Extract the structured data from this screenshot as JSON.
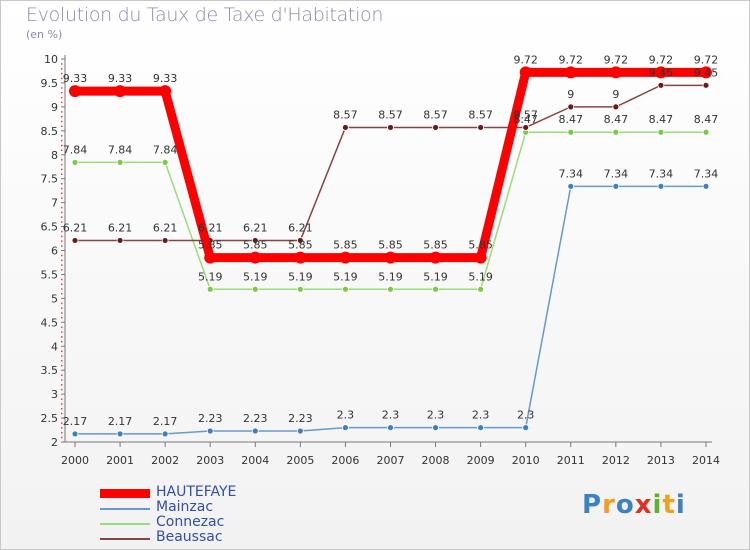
{
  "chart_data": {
    "type": "line",
    "title": "Evolution du Taux de Taxe d'Habitation",
    "unit_label": "(en %)",
    "x": [
      "2000",
      "2001",
      "2002",
      "2003",
      "2004",
      "2005",
      "2006",
      "2007",
      "2008",
      "2009",
      "2010",
      "2011",
      "2012",
      "2013",
      "2014"
    ],
    "ylim": [
      2,
      10
    ],
    "yticks": [
      "2",
      "2.5",
      "3",
      "3.5",
      "4",
      "4.5",
      "5",
      "5.5",
      "6",
      "6.5",
      "7",
      "7.5",
      "8",
      "8.5",
      "9",
      "9.5",
      "10"
    ],
    "grid": false,
    "legend_position": "bottom-left",
    "series": [
      {
        "name": "HAUTEFAYE",
        "color": "#ff0000",
        "emphasis": true,
        "values": [
          9.33,
          9.33,
          9.33,
          5.85,
          5.85,
          5.85,
          5.85,
          5.85,
          5.85,
          5.85,
          9.72,
          9.72,
          9.72,
          9.72,
          9.72
        ],
        "labels": [
          "9.33",
          "9.33",
          "9.33",
          "5.85",
          "5.85",
          "5.85",
          "5.85",
          "5.85",
          "5.85",
          "5.85",
          "9.72",
          "9.72",
          "9.72",
          "9.72",
          "9.72"
        ]
      },
      {
        "name": "Mainzac",
        "color": "#6699cc",
        "marker_color": "#3d7fc0",
        "values": [
          2.17,
          2.17,
          2.17,
          2.23,
          2.23,
          2.23,
          2.3,
          2.3,
          2.3,
          2.3,
          2.3,
          7.34,
          7.34,
          7.34,
          7.34
        ],
        "labels": [
          "2.17",
          "2.17",
          "2.17",
          "2.23",
          "2.23",
          "2.23",
          "2.3",
          "2.3",
          "2.3",
          "2.3",
          "2.3",
          "7.34",
          "7.34",
          "7.34",
          "7.34"
        ]
      },
      {
        "name": "Connezac",
        "color": "#99dd77",
        "marker_color": "#77cc44",
        "values": [
          7.84,
          7.84,
          7.84,
          5.19,
          5.19,
          5.19,
          5.19,
          5.19,
          5.19,
          5.19,
          8.47,
          8.47,
          8.47,
          8.47,
          8.47
        ],
        "labels": [
          "7.84",
          "7.84",
          "7.84",
          "5.19",
          "5.19",
          "5.19",
          "5.19",
          "5.19",
          "5.19",
          "5.19",
          "8.47",
          "8.47",
          "8.47",
          "8.47",
          "8.47"
        ]
      },
      {
        "name": "Beaussac",
        "color": "#884444",
        "marker_color": "#6b1a1a",
        "values": [
          6.21,
          6.21,
          6.21,
          6.21,
          6.21,
          6.21,
          8.57,
          8.57,
          8.57,
          8.57,
          8.57,
          9,
          9,
          9.45,
          9.45
        ],
        "labels": [
          "6.21",
          "6.21",
          "6.21",
          "6.21",
          "6.21",
          "6.21",
          "8.57",
          "8.57",
          "8.57",
          "8.57",
          "8.57",
          "9",
          "9",
          "9.45",
          "9.45"
        ]
      }
    ]
  },
  "legend": [
    {
      "name": "HAUTEFAYE",
      "color": "#ff0000"
    },
    {
      "name": "Mainzac",
      "color": "#6699cc"
    },
    {
      "name": "Connezac",
      "color": "#99dd77"
    },
    {
      "name": "Beaussac",
      "color": "#884444"
    }
  ],
  "logo": {
    "text": "Proxiti",
    "letters": [
      "P",
      "r",
      "o",
      "x",
      "i",
      "t",
      "i"
    ],
    "colors": [
      "#3b82c4",
      "#f0a020",
      "#3b82c4",
      "#e03020",
      "#60b030",
      "#f0a020",
      "#3b82c4"
    ]
  }
}
